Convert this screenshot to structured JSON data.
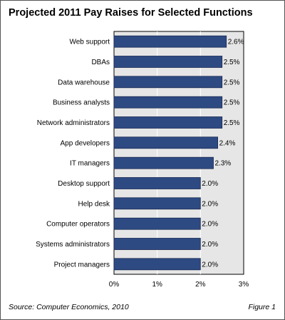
{
  "title": "Projected 2011 Pay Raises for Selected Functions",
  "footer": {
    "source": "Source: Computer Economics, 2010",
    "figure": "Figure 1"
  },
  "colors": {
    "bar": "#2e4a82",
    "bar_edge": "#1a2b55",
    "plot_bg": "#e6e6e6"
  },
  "chart_data": {
    "type": "bar",
    "orientation": "horizontal",
    "title": "Projected 2011 Pay Raises for Selected Functions",
    "categories": [
      "Web support",
      "DBAs",
      "Data warehouse",
      "Business analysts",
      "Network administrators",
      "App developers",
      "IT managers",
      "Desktop support",
      "Help desk",
      "Computer operators",
      "Systems administrators",
      "Project managers"
    ],
    "values": [
      2.6,
      2.5,
      2.5,
      2.5,
      2.5,
      2.4,
      2.3,
      2.0,
      2.0,
      2.0,
      2.0,
      2.0
    ],
    "value_labels": [
      "2.6%",
      "2.5%",
      "2.5%",
      "2.5%",
      "2.5%",
      "2.4%",
      "2.3%",
      "2.0%",
      "2.0%",
      "2.0%",
      "2.0%",
      "2.0%"
    ],
    "x_ticks": [
      0,
      1,
      2,
      3
    ],
    "x_tick_labels": [
      "0%",
      "1%",
      "2%",
      "3%"
    ],
    "xlim": [
      0,
      3
    ],
    "xlabel": "",
    "ylabel": "",
    "grid": true
  }
}
